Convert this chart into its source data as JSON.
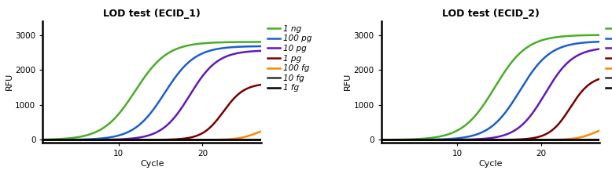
{
  "title1": "LOD test (ECID_1)",
  "title2": "LOD test (ECID_2)",
  "xlabel": "Cycle",
  "ylabel": "RFU",
  "ylim": [
    -80,
    3400
  ],
  "xlim": [
    1,
    27
  ],
  "yticks": [
    0,
    1000,
    2000,
    3000
  ],
  "xticks": [
    10,
    20
  ],
  "series": [
    {
      "label": "1 ng",
      "color": "#4aad27",
      "mid1": 12.0,
      "k1": 0.52,
      "ymax1": 2800,
      "mid2": 14.5,
      "k2": 0.52,
      "ymax2": 3000
    },
    {
      "label": "100 pg",
      "color": "#1a5fcc",
      "mid1": 15.5,
      "k1": 0.55,
      "ymax1": 2680,
      "mid2": 17.5,
      "k2": 0.55,
      "ymax2": 2820
    },
    {
      "label": "10 pg",
      "color": "#6318b8",
      "mid1": 18.5,
      "k1": 0.6,
      "ymax1": 2560,
      "mid2": 20.5,
      "k2": 0.6,
      "ymax2": 2650
    },
    {
      "label": "1 pg",
      "color": "#7a0000",
      "mid1": 22.5,
      "k1": 0.8,
      "ymax1": 1620,
      "mid2": 23.5,
      "k2": 0.8,
      "ymax2": 1850
    },
    {
      "label": "100 fg",
      "color": "#ff8800",
      "mid1": 26.5,
      "k1": 0.9,
      "ymax1": 400,
      "mid2": 26.5,
      "k2": 0.9,
      "ymax2": 440
    },
    {
      "label": "10 fg",
      "color": "#333333",
      "mid1": 50.0,
      "k1": 0.9,
      "ymax1": 30,
      "mid2": 50.0,
      "k2": 0.9,
      "ymax2": 30
    },
    {
      "label": "1 fg",
      "color": "#000000",
      "mid1": 60.0,
      "k1": 0.9,
      "ymax1": 10,
      "mid2": 60.0,
      "k2": 0.9,
      "ymax2": 10
    }
  ],
  "legend_fontsize": 7.5,
  "title_fontsize": 9,
  "axis_fontsize": 8,
  "tick_fontsize": 7.5,
  "linewidth": 1.8
}
